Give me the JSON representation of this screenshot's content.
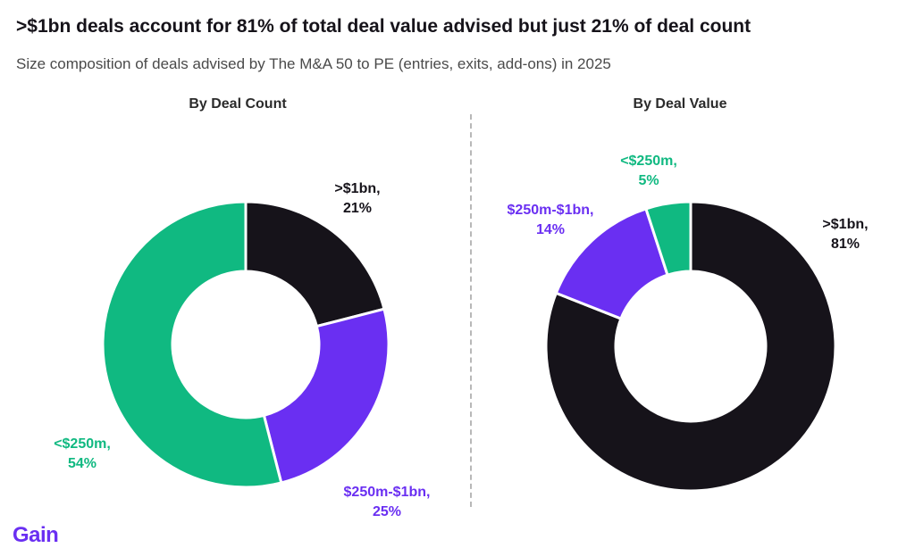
{
  "title": ">$1bn deals account for 81% of total deal value advised but just 21% of deal count",
  "subtitle": "Size composition of deals advised by The M&A 50 to PE (entries, exits, add-ons) in 2025",
  "brand": "Gain",
  "colors": {
    ">$1bn": "#16131a",
    "$250m-$1bn": "#6a2ff2",
    "<$250m": "#10b981"
  },
  "chart_data": [
    {
      "type": "pie",
      "title": "By Deal Count",
      "slices": [
        {
          "label": ">$1bn",
          "value": 21,
          "value_label": "21%"
        },
        {
          "label": "$250m-$1bn",
          "value": 25,
          "value_label": "25%"
        },
        {
          "label": "<$250m",
          "value": 54,
          "value_label": "54%"
        }
      ]
    },
    {
      "type": "pie",
      "title": "By Deal Value",
      "slices": [
        {
          "label": ">$1bn",
          "value": 81,
          "value_label": "81%"
        },
        {
          "label": "$250m-$1bn",
          "value": 14,
          "value_label": "14%"
        },
        {
          "label": "<$250m",
          "value": 5,
          "value_label": "5%"
        }
      ]
    }
  ]
}
